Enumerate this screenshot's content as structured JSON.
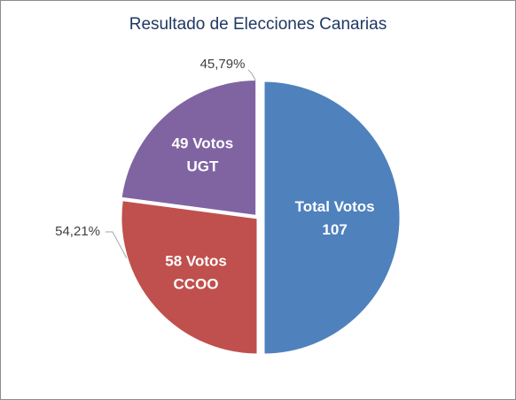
{
  "chart_data": {
    "type": "pie",
    "title": "Resultado de Elecciones Canarias",
    "slices": [
      {
        "name": "Total Votos",
        "value": 107,
        "label_lines": [
          "Total Votos",
          "107"
        ],
        "color": "#4f81bd"
      },
      {
        "name": "CCOO",
        "value": 58,
        "label_lines": [
          "58 Votos",
          "CCOO"
        ],
        "color": "#c0504d"
      },
      {
        "name": "UGT",
        "value": 49,
        "label_lines": [
          "49 Votos",
          "UGT"
        ],
        "color": "#8064a2"
      }
    ],
    "annotations": [
      {
        "text": "45,79%",
        "points_to": "UGT"
      },
      {
        "text": "54,21%",
        "points_to": "CCOO"
      }
    ]
  }
}
